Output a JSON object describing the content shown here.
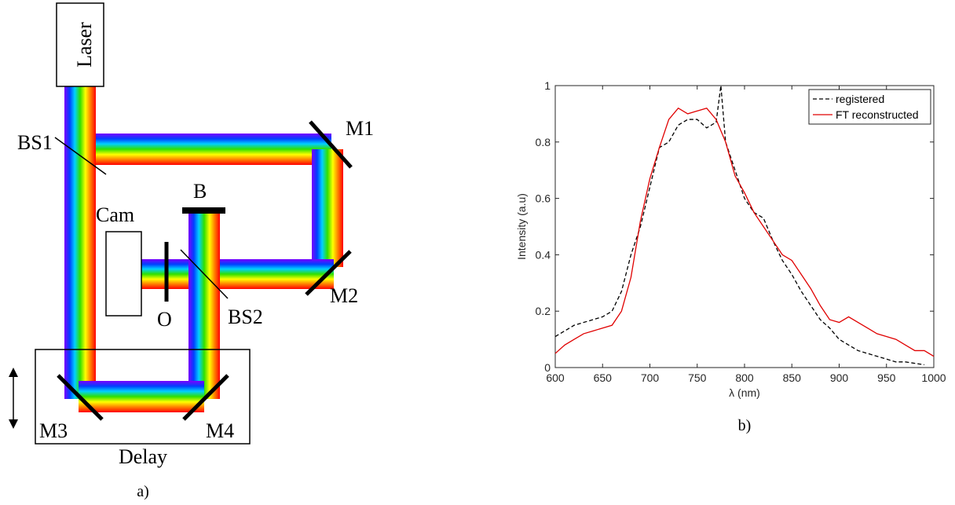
{
  "diagram": {
    "labels": [
      "Laser",
      "BS1",
      "M1",
      "B",
      "Cam",
      "M2",
      "O",
      "BS2",
      "M3",
      "M4",
      "Delay"
    ],
    "caption": "a)"
  },
  "chart_data": {
    "type": "line",
    "caption": "b)",
    "xlabel": "λ (nm)",
    "ylabel": "Intensity (a.u)",
    "xlim": [
      600,
      1000
    ],
    "xticks": [
      600,
      650,
      700,
      750,
      800,
      850,
      900,
      950,
      1000
    ],
    "ylim": [
      0,
      1
    ],
    "yticks": [
      0,
      0.2,
      0.4,
      0.6,
      0.8,
      1
    ],
    "legend": "upper right",
    "series": [
      {
        "name": "registered",
        "color": "#000000",
        "dash": "dashed",
        "x": [
          600,
          610,
          620,
          630,
          640,
          650,
          660,
          670,
          680,
          690,
          700,
          710,
          720,
          730,
          740,
          750,
          760,
          770,
          775,
          780,
          790,
          800,
          810,
          820,
          830,
          840,
          850,
          860,
          870,
          880,
          890,
          900,
          910,
          920,
          930,
          940,
          950,
          960,
          970,
          980,
          990
        ],
        "values": [
          0.11,
          0.13,
          0.15,
          0.16,
          0.17,
          0.18,
          0.2,
          0.27,
          0.4,
          0.5,
          0.64,
          0.78,
          0.8,
          0.86,
          0.88,
          0.88,
          0.85,
          0.87,
          1.0,
          0.8,
          0.7,
          0.6,
          0.55,
          0.53,
          0.45,
          0.38,
          0.33,
          0.27,
          0.22,
          0.17,
          0.14,
          0.1,
          0.08,
          0.06,
          0.05,
          0.04,
          0.03,
          0.02,
          0.02,
          0.015,
          0.01
        ]
      },
      {
        "name": "FT reconstructed",
        "color": "#e00000",
        "dash": "solid",
        "x": [
          600,
          610,
          620,
          630,
          640,
          650,
          660,
          670,
          680,
          690,
          700,
          710,
          720,
          730,
          740,
          750,
          760,
          770,
          780,
          790,
          800,
          810,
          820,
          830,
          840,
          850,
          860,
          870,
          880,
          890,
          900,
          910,
          920,
          930,
          940,
          950,
          960,
          970,
          980,
          990,
          1000
        ],
        "values": [
          0.05,
          0.08,
          0.1,
          0.12,
          0.13,
          0.14,
          0.15,
          0.2,
          0.32,
          0.52,
          0.67,
          0.78,
          0.88,
          0.92,
          0.9,
          0.91,
          0.92,
          0.88,
          0.8,
          0.68,
          0.62,
          0.55,
          0.5,
          0.45,
          0.4,
          0.38,
          0.33,
          0.28,
          0.22,
          0.17,
          0.16,
          0.18,
          0.16,
          0.14,
          0.12,
          0.11,
          0.1,
          0.08,
          0.06,
          0.06,
          0.04
        ]
      }
    ]
  }
}
